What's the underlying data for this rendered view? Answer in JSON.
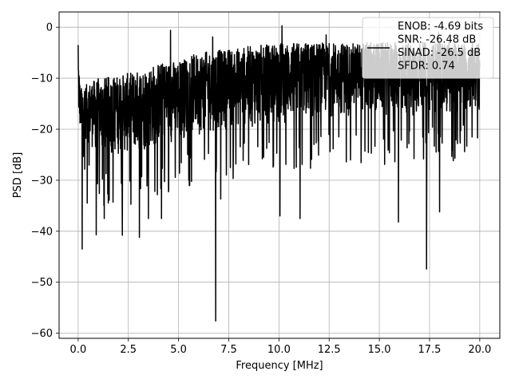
{
  "chart_data": {
    "type": "line",
    "title": "",
    "xlabel": "Frequency [MHz]",
    "ylabel": "PSD [dB]",
    "xlim": [
      -0.95,
      21.0
    ],
    "ylim": [
      -61.0,
      3.0
    ],
    "x_ticks": [
      0.0,
      2.5,
      5.0,
      7.5,
      10.0,
      12.5,
      15.0,
      17.5,
      20.0
    ],
    "x_tick_labels": [
      "0.0",
      "2.5",
      "5.0",
      "7.5",
      "10.0",
      "12.5",
      "15.0",
      "17.5",
      "20.0"
    ],
    "y_ticks": [
      0,
      -10,
      -20,
      -30,
      -40,
      -50,
      -60
    ],
    "y_tick_labels": [
      "0",
      "−10",
      "−20",
      "−30",
      "−40",
      "−50",
      "−60"
    ],
    "grid": true,
    "legend_position": "top-right",
    "legend_lines": [
      "ENOB: -4.69 bits",
      "SNR: -26.48 dB",
      "SINAD: -26.5 dB",
      "SFDR: 0.74"
    ],
    "series": [
      {
        "color": "#000000",
        "x_range": [
          0.0,
          20.0
        ],
        "upper_envelope_points": [
          [
            0.0,
            -3.5
          ],
          [
            0.1,
            -12.0
          ],
          [
            0.5,
            -11.0
          ],
          [
            1.0,
            -10.0
          ],
          [
            2.0,
            -9.5
          ],
          [
            3.0,
            -8.5
          ],
          [
            4.0,
            -7.0
          ],
          [
            5.0,
            -6.5
          ],
          [
            6.0,
            -5.0
          ],
          [
            7.0,
            -4.5
          ],
          [
            8.0,
            -4.0
          ],
          [
            9.0,
            -3.5
          ],
          [
            10.0,
            -3.0
          ],
          [
            12.0,
            -3.0
          ],
          [
            14.0,
            -3.0
          ],
          [
            16.0,
            -3.0
          ],
          [
            18.0,
            -3.0
          ],
          [
            20.0,
            -3.0
          ]
        ],
        "lower_envelope_points": [
          [
            0.0,
            -22.0
          ],
          [
            1.0,
            -28.0
          ],
          [
            3.0,
            -28.0
          ],
          [
            5.0,
            -25.0
          ],
          [
            7.0,
            -23.0
          ],
          [
            10.0,
            -22.0
          ],
          [
            13.0,
            -20.0
          ],
          [
            16.0,
            -20.0
          ],
          [
            20.0,
            -19.0
          ]
        ],
        "dips": [
          [
            0.2,
            -43.5
          ],
          [
            0.45,
            -34.5
          ],
          [
            0.9,
            -40.7
          ],
          [
            1.3,
            -37.5
          ],
          [
            2.2,
            -40.8
          ],
          [
            3.05,
            -41.2
          ],
          [
            3.5,
            -37.5
          ],
          [
            4.15,
            -37.5
          ],
          [
            6.85,
            -57.6
          ],
          [
            7.1,
            -33.7
          ],
          [
            10.05,
            -37.0
          ],
          [
            11.05,
            -37.5
          ],
          [
            15.95,
            -38.2
          ],
          [
            17.35,
            -47.4
          ],
          [
            18.0,
            -36.2
          ]
        ],
        "peaks": [
          [
            0.0,
            -3.5
          ],
          [
            4.6,
            -0.6
          ],
          [
            6.7,
            -1.9
          ],
          [
            10.15,
            0.3
          ],
          [
            12.35,
            -1.5
          ],
          [
            17.95,
            -1.0
          ]
        ]
      }
    ]
  }
}
